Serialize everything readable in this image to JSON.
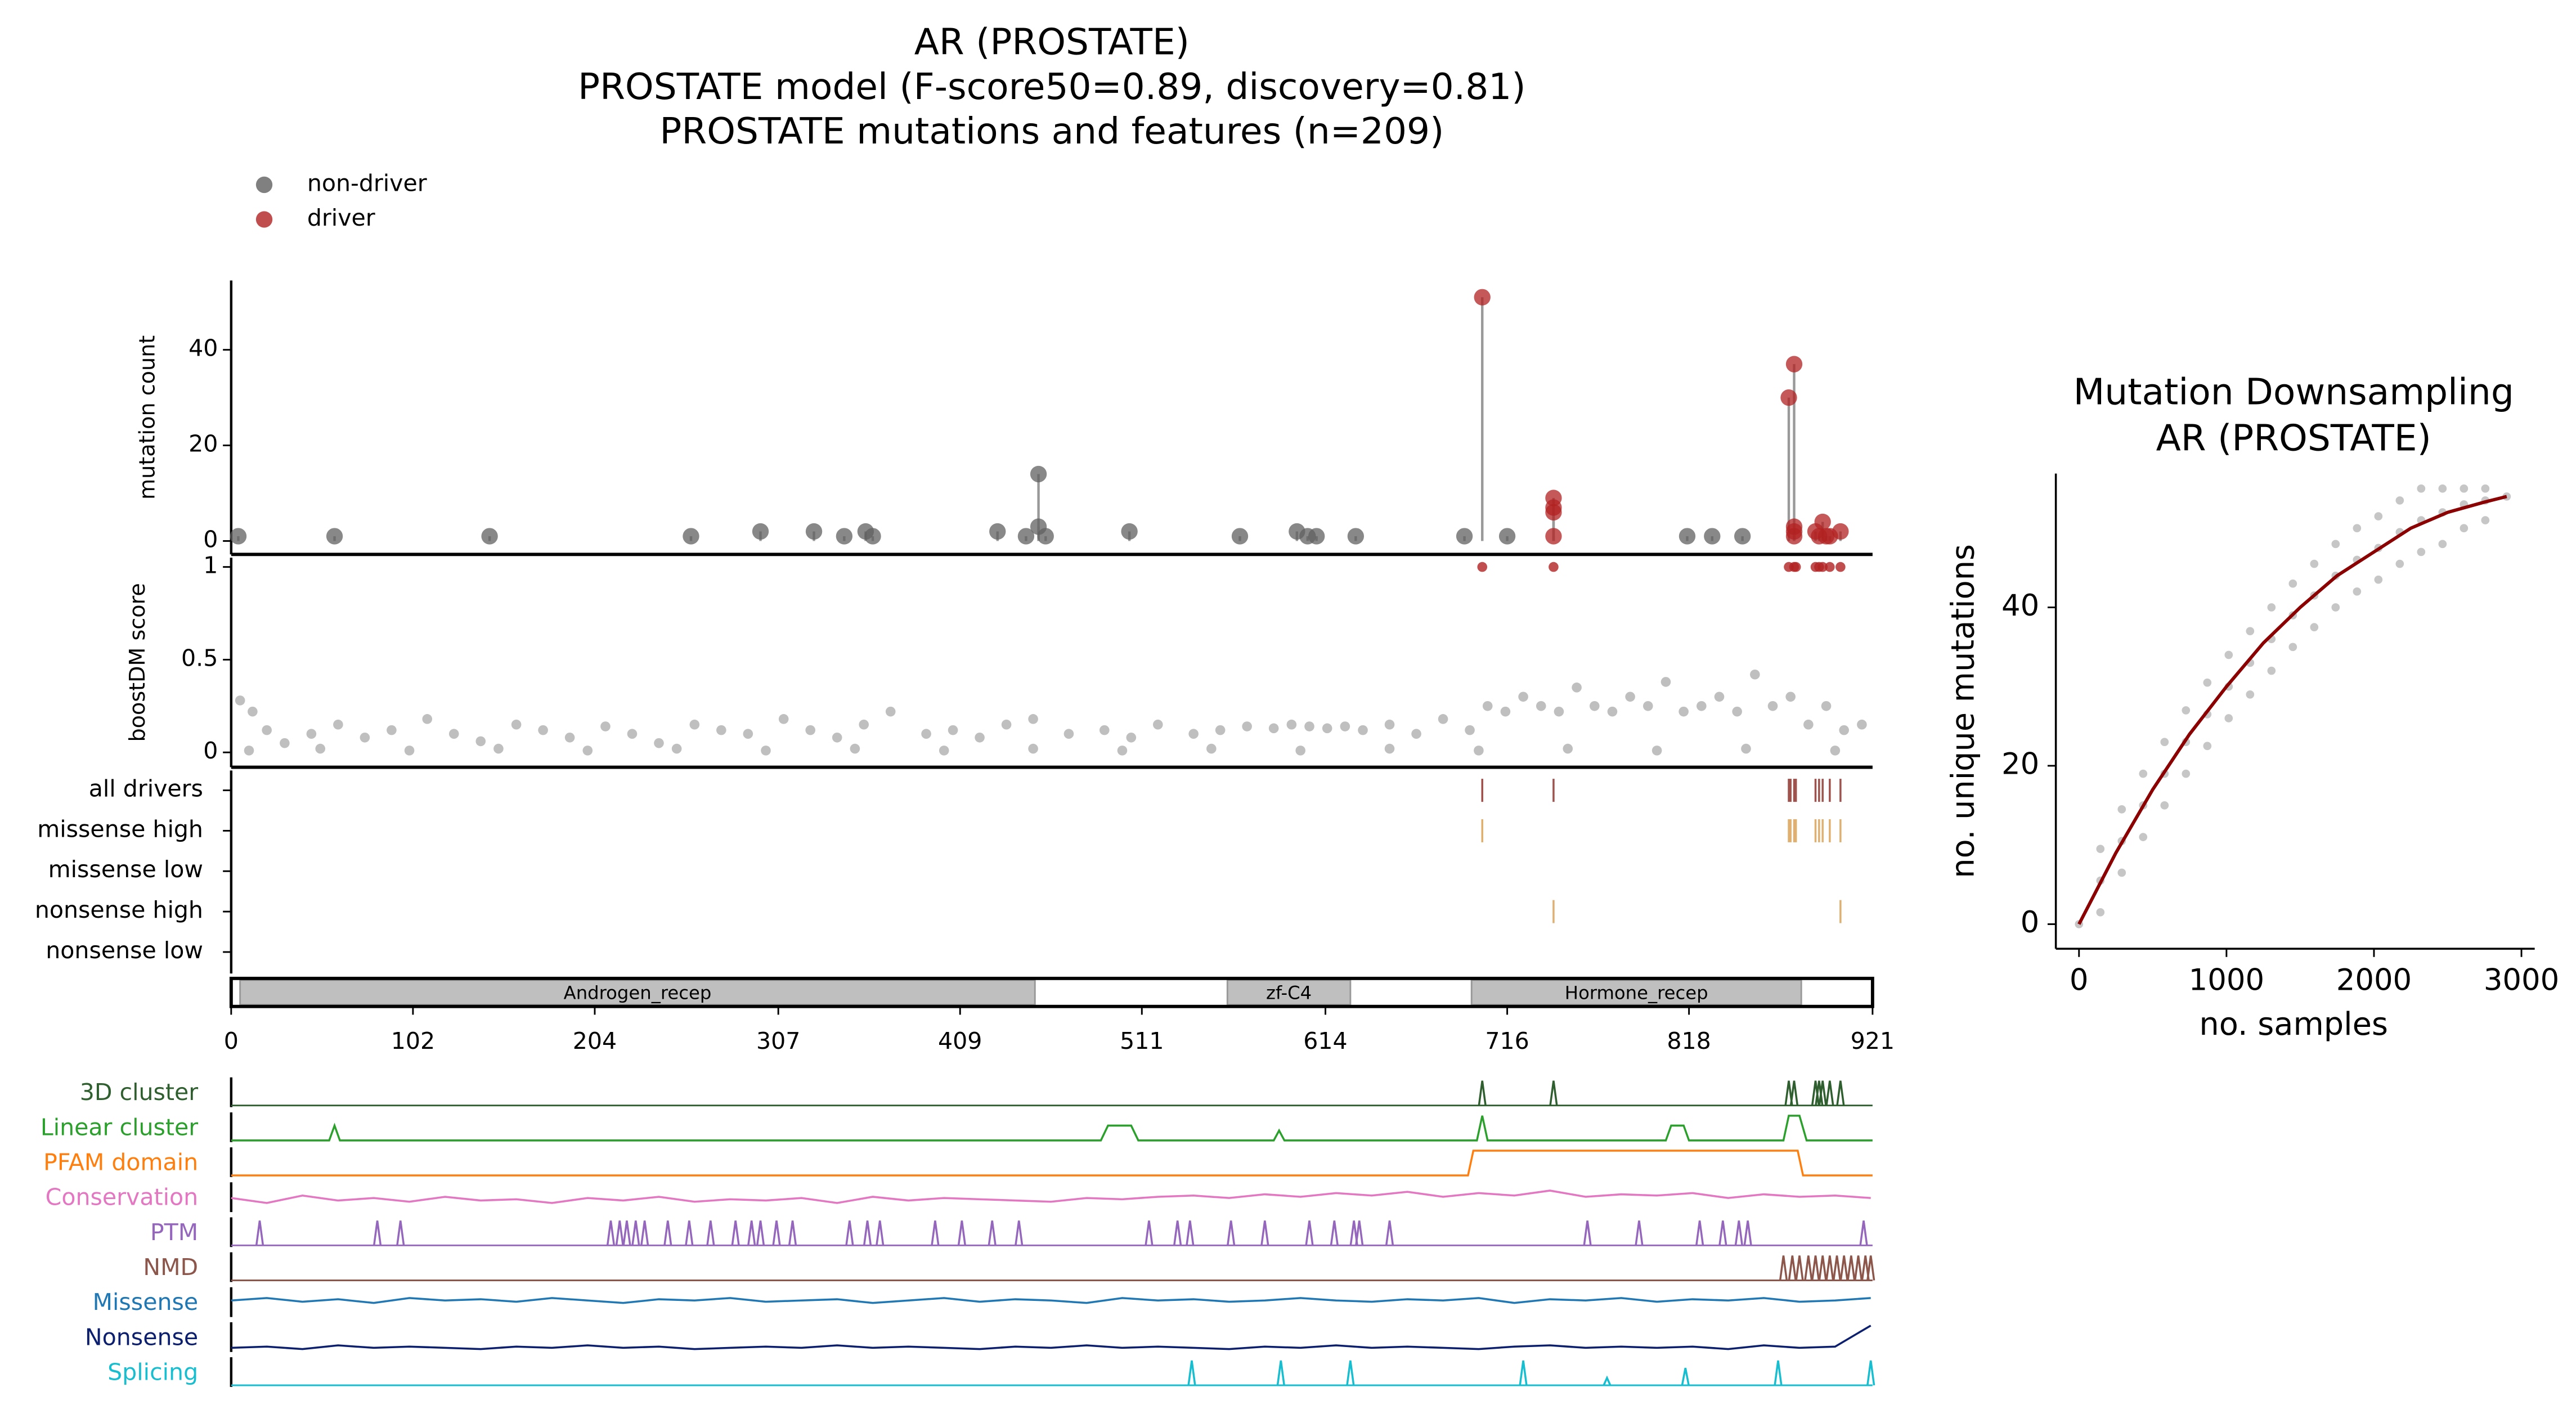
{
  "chart_data": [
    {
      "type": "lollipop",
      "title": [
        "AR (PROSTATE)",
        "PROSTATE model (F-score50=0.89, discovery=0.81)",
        "PROSTATE mutations and features (n=209)"
      ],
      "ylabel": "mutation count",
      "xlim": [
        0,
        921
      ],
      "ylim": [
        -2.8,
        54.5
      ],
      "yticks": [
        0,
        20,
        40
      ],
      "legend": "upper left",
      "series": [
        {
          "name": "non-driver",
          "color": "#606060",
          "x": [
            4,
            58,
            145,
            258,
            297,
            327,
            344,
            356,
            360,
            430,
            446,
            453,
            453,
            457,
            504,
            566,
            598,
            604,
            609,
            631,
            692,
            716,
            817,
            831,
            848
          ],
          "values": [
            1,
            1,
            1,
            1,
            2,
            2,
            1,
            2,
            1,
            2,
            1,
            14,
            3,
            1,
            2,
            1,
            2,
            1,
            1,
            1,
            1,
            1,
            1,
            1,
            1
          ]
        },
        {
          "name": "driver",
          "color": "#b22222",
          "x": [
            702,
            742,
            742,
            742,
            742,
            874,
            877,
            877,
            877,
            877,
            889,
            891,
            893,
            895,
            897,
            903
          ],
          "values": [
            51,
            9,
            7,
            6,
            1,
            30,
            37,
            3,
            2,
            1,
            2,
            1,
            4,
            1,
            1,
            2
          ]
        }
      ]
    },
    {
      "type": "scatter",
      "ylabel": "boostDM score",
      "xlim": [
        0,
        921
      ],
      "ylim": [
        -0.08,
        1.05
      ],
      "yticks": [
        0,
        0.5,
        1
      ],
      "series": [
        {
          "color": "#606060",
          "x": [
            5,
            12,
            20,
            30,
            45,
            60,
            75,
            90,
            110,
            125,
            140,
            160,
            175,
            190,
            210,
            225,
            240,
            260,
            275,
            290,
            310,
            325,
            340,
            355,
            370,
            390,
            405,
            420,
            435,
            450,
            470,
            490,
            505,
            520,
            540,
            555,
            570,
            585,
            595,
            605,
            615,
            625,
            635,
            650,
            665,
            680,
            695,
            705,
            715,
            725,
            735,
            745,
            755,
            765,
            775,
            785,
            795,
            805,
            815,
            825,
            835,
            845,
            855,
            865,
            875,
            885,
            895,
            905,
            915,
            10,
            50,
            100,
            150,
            200,
            250,
            300,
            350,
            400,
            450,
            500,
            550,
            600,
            650,
            700,
            750,
            800,
            850,
            900
          ],
          "values": [
            0.28,
            0.22,
            0.12,
            0.05,
            0.1,
            0.15,
            0.08,
            0.12,
            0.18,
            0.1,
            0.06,
            0.15,
            0.12,
            0.08,
            0.14,
            0.1,
            0.05,
            0.15,
            0.12,
            0.1,
            0.18,
            0.12,
            0.08,
            0.15,
            0.22,
            0.1,
            0.12,
            0.08,
            0.15,
            0.18,
            0.1,
            0.12,
            0.08,
            0.15,
            0.1,
            0.12,
            0.14,
            0.13,
            0.15,
            0.14,
            0.13,
            0.14,
            0.12,
            0.15,
            0.1,
            0.18,
            0.12,
            0.25,
            0.22,
            0.3,
            0.25,
            0.22,
            0.35,
            0.25,
            0.22,
            0.3,
            0.25,
            0.38,
            0.22,
            0.25,
            0.3,
            0.22,
            0.42,
            0.25,
            0.3,
            0.15,
            0.25,
            0.12,
            0.15,
            0.01,
            0.02,
            0.01,
            0.02,
            0.01,
            0.02,
            0.01,
            0.02,
            0.01,
            0.02,
            0.01,
            0.02,
            0.01,
            0.02,
            0.01,
            0.02,
            0.01,
            0.02,
            0.01
          ]
        },
        {
          "color": "#b22222",
          "x": [
            702,
            742,
            874,
            877,
            878,
            889,
            891,
            893,
            897,
            903
          ],
          "values": [
            1,
            1,
            1,
            1,
            1,
            1,
            1,
            1,
            1,
            1
          ]
        }
      ]
    },
    {
      "type": "tracks",
      "xlim": [
        0,
        921
      ],
      "categories": [
        "all drivers",
        "missense high",
        "missense low",
        "nonsense high",
        "nonsense low"
      ],
      "colors": [
        "#a0524d",
        "#e0b070",
        "#e0b070",
        "#e0b070",
        "#e0b070"
      ],
      "x": [
        [
          702,
          742,
          874,
          875,
          877,
          878,
          889,
          891,
          893,
          897,
          903
        ],
        [
          702,
          874,
          875,
          877,
          878,
          889,
          891,
          893,
          897,
          903
        ],
        [],
        [
          742,
          903
        ],
        []
      ]
    },
    {
      "type": "domains",
      "xlim": [
        0,
        921
      ],
      "xticks": [
        0,
        102,
        204,
        307,
        409,
        511,
        614,
        716,
        818,
        921
      ],
      "color": "#bfbfbf",
      "domains": [
        {
          "name": "Androgen_recep",
          "start": 5,
          "end": 451
        },
        {
          "name": "zf-C4",
          "start": 559,
          "end": 628
        },
        {
          "name": "Hormone_recep",
          "start": 696,
          "end": 881
        }
      ]
    },
    {
      "type": "features",
      "xlim": [
        0,
        921
      ],
      "series": [
        {
          "name": "3D cluster",
          "color": "#2f5f2f",
          "peaks": [
            702,
            742,
            874,
            877,
            889,
            891,
            893,
            897,
            903
          ],
          "values": [
            1,
            1,
            1,
            1,
            1,
            1,
            1,
            1,
            1
          ]
        },
        {
          "name": "Linear cluster",
          "color": "#2ca02c",
          "x": [
            0,
            55,
            58,
            61,
            488,
            492,
            505,
            509,
            585,
            588,
            591,
            699,
            702,
            705,
            805,
            808,
            815,
            818,
            871,
            874,
            880,
            884,
            921
          ],
          "values": [
            0,
            0,
            0.6,
            0,
            0,
            0.6,
            0.6,
            0,
            0,
            0.4,
            0,
            0,
            1,
            0,
            0,
            0.6,
            0.6,
            0,
            0,
            1,
            1,
            0,
            0
          ]
        },
        {
          "name": "PFAM domain",
          "color": "#ff7f0e",
          "x": [
            0,
            694,
            697,
            879,
            882,
            921
          ],
          "values": [
            0,
            0,
            1,
            1,
            0,
            0
          ]
        },
        {
          "name": "Conservation",
          "color": "#e377c2",
          "x": [
            0,
            20,
            40,
            60,
            80,
            100,
            120,
            140,
            160,
            180,
            200,
            220,
            240,
            260,
            280,
            300,
            320,
            340,
            360,
            380,
            400,
            420,
            440,
            460,
            480,
            500,
            520,
            540,
            560,
            580,
            600,
            620,
            640,
            660,
            680,
            700,
            720,
            740,
            760,
            780,
            800,
            820,
            840,
            860,
            880,
            900,
            920
          ],
          "values": [
            0.5,
            0.3,
            0.6,
            0.4,
            0.5,
            0.35,
            0.55,
            0.4,
            0.45,
            0.3,
            0.5,
            0.4,
            0.55,
            0.35,
            0.45,
            0.4,
            0.5,
            0.3,
            0.55,
            0.4,
            0.5,
            0.45,
            0.4,
            0.35,
            0.5,
            0.45,
            0.55,
            0.6,
            0.5,
            0.65,
            0.55,
            0.7,
            0.6,
            0.75,
            0.55,
            0.7,
            0.6,
            0.8,
            0.55,
            0.65,
            0.6,
            0.7,
            0.5,
            0.65,
            0.55,
            0.6,
            0.5
          ]
        },
        {
          "name": "PTM",
          "color": "#9467bd",
          "peaks": [
            16,
            82,
            95,
            213,
            218,
            222,
            227,
            232,
            245,
            257,
            269,
            283,
            292,
            297,
            306,
            315,
            347,
            357,
            364,
            395,
            410,
            427,
            442,
            515,
            531,
            538,
            561,
            580,
            605,
            619,
            630,
            633,
            650,
            761,
            790,
            824,
            837,
            846,
            851,
            916
          ],
          "values": [
            1,
            1,
            1,
            1,
            1,
            1,
            1,
            1,
            1,
            1,
            1,
            1,
            1,
            1,
            1,
            1,
            1,
            1,
            1,
            1,
            1,
            1,
            1,
            1,
            1,
            1,
            1,
            1,
            1,
            1,
            1,
            1,
            1,
            1,
            1,
            1,
            1,
            1,
            1,
            1
          ]
        },
        {
          "name": "NMD",
          "color": "#8c564b",
          "peaks": [
            871,
            876,
            880,
            885,
            889,
            893,
            897,
            901,
            905,
            909,
            913,
            917,
            920
          ],
          "values": [
            1,
            1,
            1,
            1,
            1,
            1,
            1,
            1,
            1,
            1,
            1,
            1,
            1
          ]
        },
        {
          "name": "Missense",
          "color": "#1f77b4",
          "x": [
            0,
            20,
            40,
            60,
            80,
            100,
            120,
            140,
            160,
            180,
            200,
            220,
            240,
            260,
            280,
            300,
            320,
            340,
            360,
            380,
            400,
            420,
            440,
            460,
            480,
            500,
            520,
            540,
            560,
            580,
            600,
            620,
            640,
            660,
            680,
            700,
            720,
            740,
            760,
            780,
            800,
            820,
            840,
            860,
            880,
            900,
            920
          ],
          "values": [
            0.6,
            0.7,
            0.55,
            0.65,
            0.5,
            0.7,
            0.6,
            0.65,
            0.55,
            0.7,
            0.6,
            0.5,
            0.65,
            0.6,
            0.7,
            0.55,
            0.6,
            0.65,
            0.5,
            0.6,
            0.7,
            0.55,
            0.65,
            0.6,
            0.5,
            0.7,
            0.6,
            0.65,
            0.55,
            0.6,
            0.7,
            0.6,
            0.55,
            0.65,
            0.6,
            0.7,
            0.5,
            0.65,
            0.6,
            0.7,
            0.55,
            0.65,
            0.6,
            0.7,
            0.55,
            0.6,
            0.7
          ]
        },
        {
          "name": "Nonsense",
          "color": "#0b1f6e",
          "x": [
            0,
            20,
            40,
            60,
            80,
            100,
            120,
            140,
            160,
            180,
            200,
            220,
            240,
            260,
            280,
            300,
            320,
            340,
            360,
            380,
            400,
            420,
            440,
            460,
            480,
            500,
            520,
            540,
            560,
            580,
            600,
            620,
            640,
            660,
            680,
            700,
            720,
            740,
            760,
            780,
            800,
            820,
            840,
            860,
            880,
            900,
            920
          ],
          "values": [
            0.1,
            0.15,
            0.05,
            0.2,
            0.1,
            0.15,
            0.1,
            0.05,
            0.15,
            0.1,
            0.2,
            0.1,
            0.15,
            0.05,
            0.1,
            0.15,
            0.1,
            0.2,
            0.1,
            0.15,
            0.1,
            0.05,
            0.15,
            0.1,
            0.2,
            0.1,
            0.15,
            0.1,
            0.05,
            0.15,
            0.1,
            0.2,
            0.1,
            0.15,
            0.1,
            0.05,
            0.15,
            0.2,
            0.1,
            0.15,
            0.1,
            0.15,
            0.05,
            0.2,
            0.1,
            0.15,
            1
          ]
        },
        {
          "name": "Splicing",
          "color": "#17becf",
          "peaks": [
            539,
            589,
            628,
            725,
            772,
            816,
            868,
            920
          ],
          "values": [
            1,
            1,
            1,
            1,
            0.3,
            0.7,
            1,
            1
          ]
        }
      ]
    },
    {
      "type": "downsampling",
      "title": [
        "Mutation Downsampling",
        "AR (PROSTATE)"
      ],
      "xlabel": "no. samples",
      "ylabel": "no. unique mutations",
      "xlim": [
        -157,
        3090
      ],
      "ylim": [
        -3.1,
        56.9
      ],
      "xticks": [
        0,
        1000,
        2000,
        3000
      ],
      "yticks": [
        0,
        20,
        40
      ],
      "point_color": "#808080",
      "color": "#8b0000",
      "points_x": [
        0,
        145,
        145,
        145,
        290,
        290,
        290,
        435,
        435,
        435,
        580,
        580,
        580,
        725,
        725,
        725,
        870,
        870,
        870,
        1015,
        1015,
        1015,
        1160,
        1160,
        1160,
        1305,
        1305,
        1305,
        1450,
        1450,
        1450,
        1595,
        1595,
        1595,
        1740,
        1740,
        1740,
        1885,
        1885,
        1885,
        2030,
        2030,
        2030,
        2175,
        2175,
        2175,
        2320,
        2320,
        2320,
        2465,
        2465,
        2465,
        2610,
        2610,
        2610,
        2755,
        2755,
        2755,
        2900
      ],
      "points_y": [
        0,
        1.5,
        5.5,
        9.5,
        6.5,
        10.5,
        14.5,
        11,
        15,
        19,
        15,
        19,
        23,
        19,
        23,
        27,
        22.5,
        26.5,
        30.5,
        26,
        30,
        34,
        29,
        33,
        37,
        32,
        36,
        40,
        35,
        39,
        43,
        37.5,
        41.5,
        45.5,
        40,
        44,
        48,
        42,
        46,
        50,
        43.5,
        47.5,
        51.5,
        45.5,
        49.5,
        53.5,
        47,
        51,
        55,
        48,
        52,
        55,
        50,
        53,
        55,
        51,
        53.5,
        55,
        54
      ],
      "x": [
        0,
        250,
        500,
        750,
        1000,
        1250,
        1500,
        1750,
        2000,
        2250,
        2500,
        2750,
        2900
      ],
      "values": [
        0,
        9,
        17,
        24,
        30,
        35.5,
        40,
        44,
        47,
        50,
        52,
        53.3,
        54
      ]
    }
  ]
}
